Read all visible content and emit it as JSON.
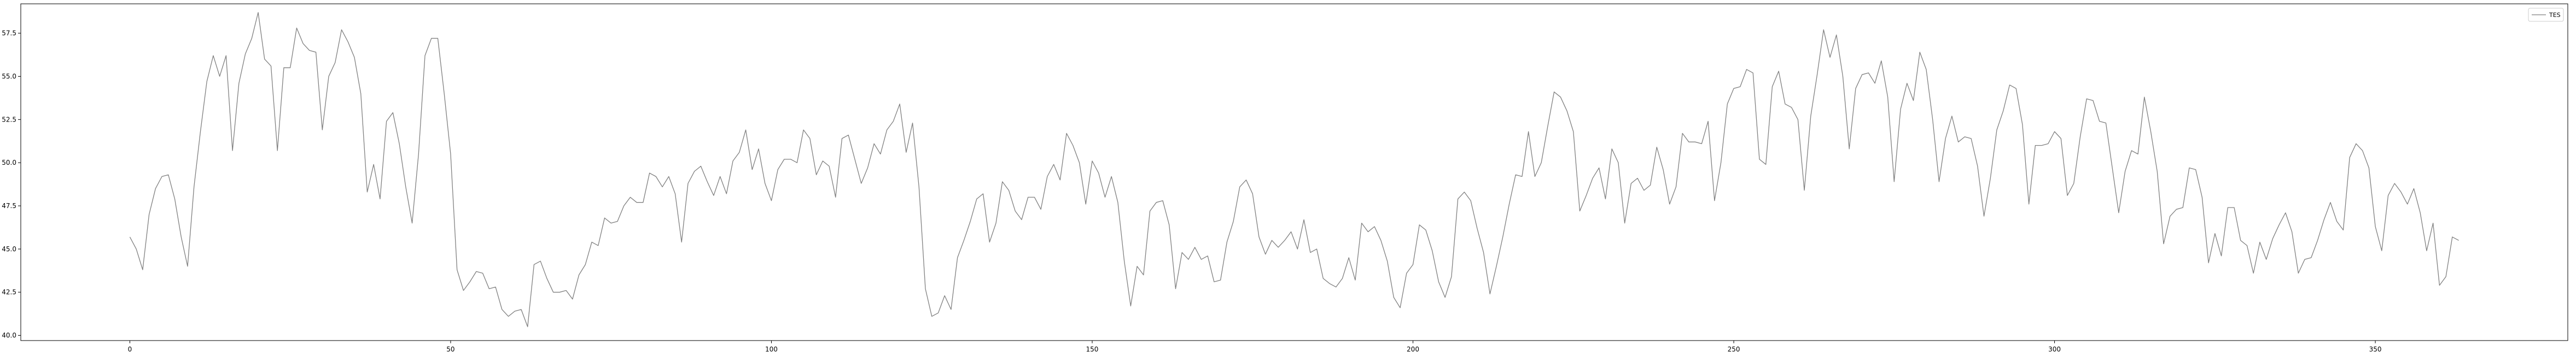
{
  "chart_data": {
    "type": "line",
    "title": "",
    "xlabel": "",
    "ylabel": "",
    "xlim": [
      -17,
      380
    ],
    "ylim": [
      39.7,
      59.2
    ],
    "x_ticks": [
      0,
      50,
      100,
      150,
      200,
      250,
      300,
      350
    ],
    "x_tick_labels": [
      "0",
      "50",
      "100",
      "150",
      "200",
      "250",
      "300",
      "350"
    ],
    "y_ticks": [
      40.0,
      42.5,
      45.0,
      47.5,
      50.0,
      52.5,
      55.0,
      57.5
    ],
    "y_tick_labels": [
      "40.0",
      "42.5",
      "45.0",
      "47.5",
      "50.0",
      "52.5",
      "55.0",
      "57.5"
    ],
    "grid": false,
    "legend": {
      "position": "top-right",
      "entries": [
        "TES"
      ]
    },
    "series": [
      {
        "name": "TES",
        "color": "#808080",
        "x_start": 0,
        "values": [
          45.7,
          45.0,
          43.8,
          47.0,
          48.5,
          49.2,
          49.3,
          47.9,
          45.7,
          44.0,
          48.6,
          51.8,
          54.7,
          56.2,
          55.0,
          56.2,
          50.7,
          54.6,
          56.3,
          57.2,
          58.7,
          56.0,
          55.6,
          50.7,
          55.5,
          55.5,
          57.8,
          56.9,
          56.5,
          56.4,
          51.9,
          55.0,
          55.8,
          57.7,
          57.0,
          56.1,
          54.0,
          48.3,
          49.9,
          47.9,
          52.4,
          52.9,
          51.1,
          48.6,
          46.5,
          50.5,
          56.2,
          57.2,
          57.2,
          54.0,
          50.5,
          43.8,
          42.6,
          43.1,
          43.7,
          43.6,
          42.7,
          42.8,
          41.5,
          41.1,
          41.4,
          41.5,
          40.5,
          44.1,
          44.3,
          43.3,
          42.5,
          42.5,
          42.6,
          42.1,
          43.5,
          44.1,
          45.4,
          45.2,
          46.8,
          46.5,
          46.6,
          47.5,
          48.0,
          47.7,
          47.7,
          49.4,
          49.2,
          48.6,
          49.2,
          48.2,
          45.4,
          48.8,
          49.5,
          49.8,
          48.9,
          48.1,
          49.2,
          48.2,
          50.1,
          50.6,
          51.9,
          49.6,
          50.8,
          48.8,
          47.8,
          49.6,
          50.2,
          50.2,
          50.0,
          51.9,
          51.4,
          49.3,
          50.1,
          49.8,
          48.0,
          51.4,
          51.6,
          50.2,
          48.8,
          49.7,
          51.1,
          50.5,
          51.9,
          52.4,
          53.4,
          50.6,
          52.3,
          48.6,
          42.7,
          41.1,
          41.3,
          42.3,
          41.5,
          44.5,
          45.5,
          46.6,
          47.9,
          48.2,
          45.4,
          46.5,
          48.9,
          48.4,
          47.2,
          46.7,
          48.0,
          48.0,
          47.3,
          49.2,
          49.9,
          49.0,
          51.7,
          51.0,
          50.0,
          47.6,
          50.1,
          49.4,
          48.0,
          49.2,
          47.7,
          44.3,
          41.7,
          44.0,
          43.5,
          47.2,
          47.7,
          47.8,
          46.4,
          42.7,
          44.8,
          44.4,
          45.1,
          44.4,
          44.6,
          43.1,
          43.2,
          45.4,
          46.6,
          48.6,
          49.0,
          48.2,
          45.7,
          44.7,
          45.5,
          45.1,
          45.5,
          46.0,
          45.0,
          46.7,
          44.8,
          45.0,
          43.3,
          43.0,
          42.8,
          43.3,
          44.5,
          43.2,
          46.5,
          46.0,
          46.3,
          45.5,
          44.3,
          42.2,
          41.6,
          43.6,
          44.1,
          46.4,
          46.1,
          44.9,
          43.1,
          42.2,
          43.4,
          47.9,
          48.3,
          47.8,
          46.2,
          44.8,
          42.4,
          44.0,
          45.7,
          47.6,
          49.3,
          49.2,
          51.8,
          49.2,
          50.0,
          52.1,
          54.1,
          53.8,
          53.0,
          51.8,
          47.2,
          48.1,
          49.1,
          49.7,
          47.9,
          50.8,
          50.0,
          46.5,
          48.8,
          49.1,
          48.4,
          48.7,
          50.9,
          49.6,
          47.6,
          48.6,
          51.7,
          51.2,
          51.2,
          51.1,
          52.4,
          47.8,
          50.0,
          53.4,
          54.3,
          54.4,
          55.4,
          55.2,
          50.2,
          49.9,
          54.4,
          55.3,
          53.4,
          53.2,
          52.5,
          48.4,
          52.7,
          55.1,
          57.7,
          56.1,
          57.4,
          55.0,
          50.8,
          54.3,
          55.1,
          55.2,
          54.6,
          55.9,
          53.8,
          48.9,
          53.1,
          54.6,
          53.6,
          56.4,
          55.4,
          52.5,
          48.9,
          51.4,
          52.7,
          51.2,
          51.5,
          51.4,
          49.8,
          46.9,
          49.1,
          51.9,
          53.0,
          54.5,
          54.3,
          52.2,
          47.6,
          51.0,
          51.0,
          51.1,
          51.8,
          51.4,
          48.1,
          48.8,
          51.5,
          53.7,
          53.6,
          52.4,
          52.3,
          49.7,
          47.1,
          49.5,
          50.7,
          50.5,
          53.8,
          51.8,
          49.5,
          45.3,
          46.9,
          47.3,
          47.4,
          49.7,
          49.6,
          48.0,
          44.2,
          45.9,
          44.6,
          47.4,
          47.4,
          45.5,
          45.2,
          43.6,
          45.4,
          44.4,
          45.6,
          46.4,
          47.1,
          46.0,
          43.6,
          44.4,
          44.5,
          45.5,
          46.7,
          47.7,
          46.6,
          46.1,
          50.3,
          51.1,
          50.7,
          49.7,
          46.3,
          44.9,
          48.1,
          48.8,
          48.3,
          47.6,
          48.5,
          47.1,
          44.9,
          46.5,
          42.9,
          43.4,
          45.7,
          45.5
        ]
      }
    ]
  }
}
